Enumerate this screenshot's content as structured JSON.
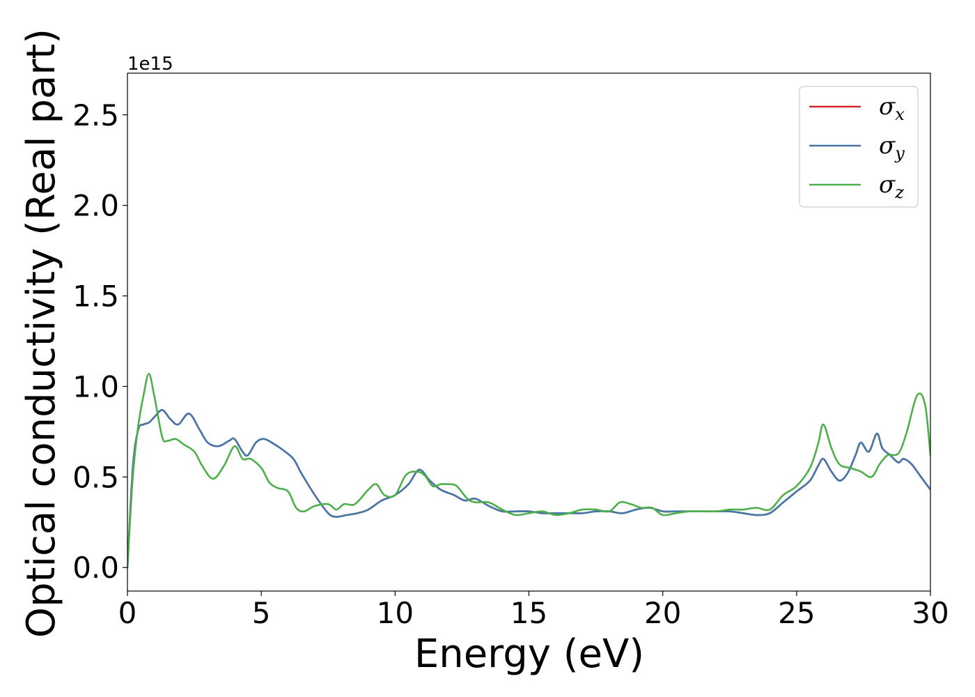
{
  "chart_data": {
    "type": "line",
    "xlabel": "Energy (eV)",
    "ylabel": "Optical conductivity (Real part)",
    "y_offset_text": "1e15",
    "y_multiplier": 1000000000000000.0,
    "xlim": [
      0,
      30
    ],
    "ylim": [
      -0.13,
      2.73
    ],
    "x_ticks": [
      0,
      5,
      10,
      15,
      20,
      25,
      30
    ],
    "x_tick_labels": [
      "0",
      "5",
      "10",
      "15",
      "20",
      "25",
      "30"
    ],
    "y_ticks": [
      0.0,
      0.5,
      1.0,
      1.5,
      2.0,
      2.5
    ],
    "y_tick_labels": [
      "0.0",
      "0.5",
      "1.0",
      "1.5",
      "2.0",
      "2.5"
    ],
    "grid": false,
    "legend_position": "top-right",
    "series": [
      {
        "name": "σx",
        "symbol": "σ",
        "subscript": "x",
        "color": "#d62728",
        "x": [
          0,
          0.2,
          0.4,
          0.6,
          0.8,
          1.0,
          1.3,
          1.6,
          1.9,
          2.3,
          2.7,
          3.0,
          3.4,
          3.8,
          4.0,
          4.3,
          4.5,
          4.8,
          5.1,
          5.5,
          5.8,
          6.2,
          6.5,
          7.0,
          7.5,
          7.8,
          8.2,
          8.6,
          9.0,
          9.5,
          10.0,
          10.5,
          10.9,
          11.3,
          11.7,
          12.2,
          12.6,
          13.0,
          13.5,
          14.0,
          14.5,
          15.0,
          15.5,
          16.0,
          16.5,
          17.0,
          17.5,
          18.0,
          18.5,
          19.0,
          19.5,
          20.0,
          20.5,
          21.0,
          21.5,
          22.0,
          22.5,
          23.0,
          23.5,
          24.0,
          24.5,
          25.0,
          25.5,
          25.8,
          26.0,
          26.3,
          26.6,
          26.9,
          27.2,
          27.4,
          27.7,
          28.0,
          28.2,
          28.5,
          28.8,
          29.0,
          29.3,
          29.6,
          30.0
        ],
        "y": [
          0.0,
          0.55,
          0.76,
          0.79,
          0.8,
          0.83,
          0.87,
          0.82,
          0.79,
          0.85,
          0.76,
          0.69,
          0.67,
          0.7,
          0.71,
          0.64,
          0.62,
          0.69,
          0.71,
          0.68,
          0.65,
          0.6,
          0.52,
          0.4,
          0.3,
          0.28,
          0.29,
          0.3,
          0.32,
          0.37,
          0.4,
          0.46,
          0.54,
          0.48,
          0.43,
          0.4,
          0.37,
          0.38,
          0.34,
          0.31,
          0.31,
          0.31,
          0.3,
          0.3,
          0.3,
          0.3,
          0.31,
          0.31,
          0.3,
          0.32,
          0.33,
          0.31,
          0.31,
          0.31,
          0.31,
          0.31,
          0.31,
          0.3,
          0.29,
          0.3,
          0.36,
          0.42,
          0.48,
          0.56,
          0.6,
          0.53,
          0.48,
          0.52,
          0.62,
          0.69,
          0.64,
          0.74,
          0.66,
          0.62,
          0.58,
          0.6,
          0.57,
          0.51,
          0.43
        ]
      },
      {
        "name": "σy",
        "symbol": "σ",
        "subscript": "y",
        "color": "#4477aa",
        "x": [
          0,
          0.2,
          0.4,
          0.6,
          0.8,
          1.0,
          1.3,
          1.6,
          1.9,
          2.3,
          2.7,
          3.0,
          3.4,
          3.8,
          4.0,
          4.3,
          4.5,
          4.8,
          5.1,
          5.5,
          5.8,
          6.2,
          6.5,
          7.0,
          7.5,
          7.8,
          8.2,
          8.6,
          9.0,
          9.5,
          10.0,
          10.5,
          10.9,
          11.3,
          11.7,
          12.2,
          12.6,
          13.0,
          13.5,
          14.0,
          14.5,
          15.0,
          15.5,
          16.0,
          16.5,
          17.0,
          17.5,
          18.0,
          18.5,
          19.0,
          19.5,
          20.0,
          20.5,
          21.0,
          21.5,
          22.0,
          22.5,
          23.0,
          23.5,
          24.0,
          24.5,
          25.0,
          25.5,
          25.8,
          26.0,
          26.3,
          26.6,
          26.9,
          27.2,
          27.4,
          27.7,
          28.0,
          28.2,
          28.5,
          28.8,
          29.0,
          29.3,
          29.6,
          30.0
        ],
        "y": [
          0.0,
          0.55,
          0.76,
          0.79,
          0.8,
          0.83,
          0.87,
          0.82,
          0.79,
          0.85,
          0.76,
          0.69,
          0.67,
          0.7,
          0.71,
          0.64,
          0.62,
          0.69,
          0.71,
          0.68,
          0.65,
          0.6,
          0.52,
          0.4,
          0.3,
          0.28,
          0.29,
          0.3,
          0.32,
          0.37,
          0.4,
          0.46,
          0.54,
          0.48,
          0.43,
          0.4,
          0.37,
          0.38,
          0.34,
          0.31,
          0.31,
          0.31,
          0.3,
          0.3,
          0.3,
          0.3,
          0.31,
          0.31,
          0.3,
          0.32,
          0.33,
          0.31,
          0.31,
          0.31,
          0.31,
          0.31,
          0.31,
          0.3,
          0.29,
          0.3,
          0.36,
          0.42,
          0.48,
          0.56,
          0.6,
          0.53,
          0.48,
          0.52,
          0.62,
          0.69,
          0.64,
          0.74,
          0.66,
          0.62,
          0.58,
          0.6,
          0.57,
          0.51,
          0.43
        ]
      },
      {
        "name": "σz",
        "symbol": "σ",
        "subscript": "z",
        "color": "#4daf4a",
        "x": [
          0,
          0.2,
          0.4,
          0.6,
          0.8,
          1.0,
          1.3,
          1.5,
          1.8,
          2.1,
          2.5,
          2.8,
          3.2,
          3.6,
          4.0,
          4.3,
          4.6,
          5.0,
          5.3,
          5.6,
          6.0,
          6.3,
          6.6,
          7.0,
          7.5,
          7.8,
          8.1,
          8.5,
          9.0,
          9.3,
          9.6,
          10.0,
          10.4,
          10.8,
          11.1,
          11.4,
          11.7,
          12.0,
          12.3,
          12.7,
          13.0,
          13.5,
          14.0,
          14.5,
          15.0,
          15.5,
          16.0,
          16.5,
          17.0,
          17.5,
          18.0,
          18.4,
          18.8,
          19.2,
          19.6,
          20.0,
          20.5,
          21.0,
          21.5,
          22.0,
          22.5,
          23.0,
          23.5,
          24.0,
          24.5,
          25.0,
          25.5,
          25.8,
          26.0,
          26.3,
          26.6,
          27.0,
          27.4,
          27.8,
          28.1,
          28.4,
          28.8,
          29.1,
          29.5,
          29.8,
          30.0
        ],
        "y": [
          0.0,
          0.5,
          0.78,
          0.95,
          1.07,
          0.95,
          0.72,
          0.7,
          0.71,
          0.68,
          0.64,
          0.56,
          0.49,
          0.56,
          0.67,
          0.6,
          0.6,
          0.55,
          0.47,
          0.44,
          0.42,
          0.33,
          0.31,
          0.34,
          0.35,
          0.32,
          0.35,
          0.35,
          0.43,
          0.46,
          0.4,
          0.4,
          0.51,
          0.53,
          0.51,
          0.45,
          0.46,
          0.46,
          0.45,
          0.38,
          0.36,
          0.36,
          0.32,
          0.29,
          0.3,
          0.31,
          0.29,
          0.3,
          0.32,
          0.32,
          0.31,
          0.36,
          0.35,
          0.33,
          0.33,
          0.29,
          0.3,
          0.31,
          0.31,
          0.31,
          0.32,
          0.32,
          0.33,
          0.32,
          0.4,
          0.45,
          0.55,
          0.68,
          0.79,
          0.66,
          0.57,
          0.55,
          0.53,
          0.5,
          0.57,
          0.62,
          0.63,
          0.74,
          0.95,
          0.9,
          0.62
        ]
      }
    ]
  }
}
